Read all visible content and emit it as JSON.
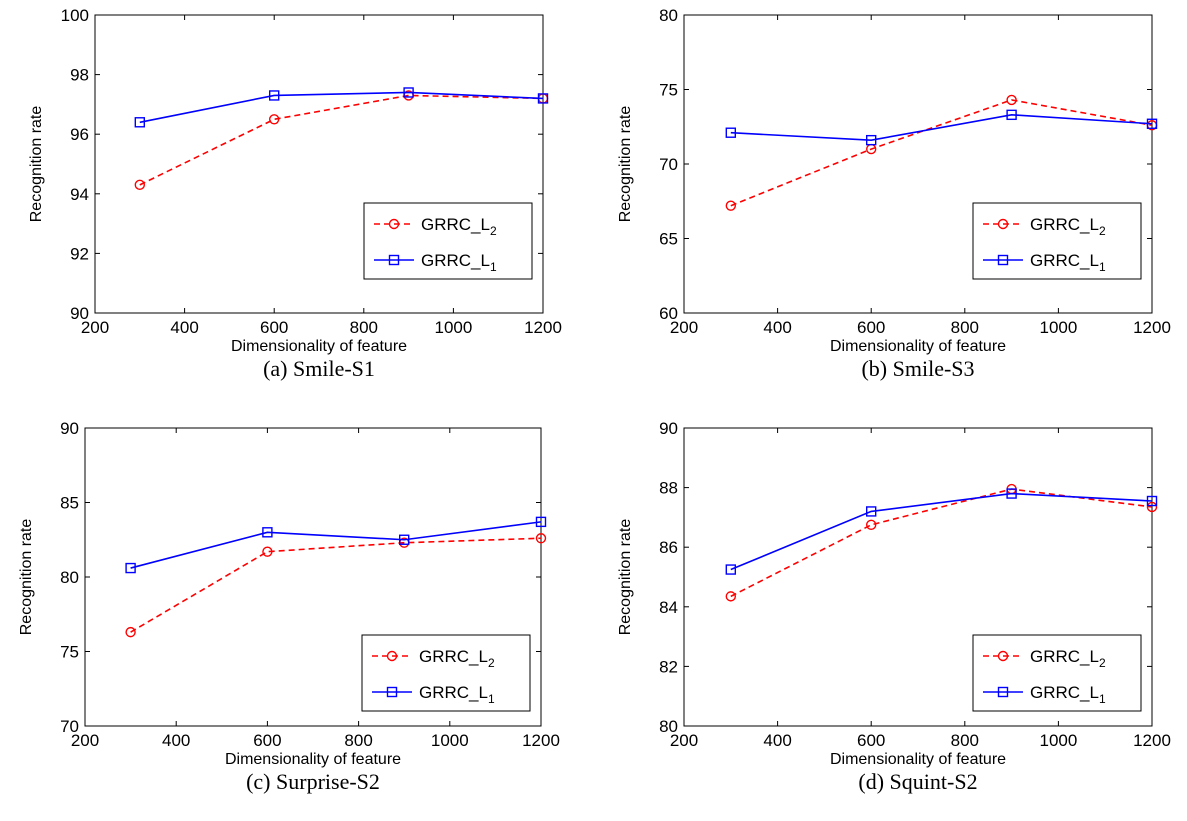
{
  "chart_data": [
    {
      "type": "line",
      "caption": "(a) Smile-S1",
      "xlabel": "Dimensionality of feature",
      "ylabel": "Recognition rate",
      "xlim": [
        200,
        1200
      ],
      "ylim": [
        90,
        100
      ],
      "xticks": [
        200,
        400,
        600,
        800,
        1000,
        1200
      ],
      "yticks": [
        90,
        92,
        94,
        96,
        98,
        100
      ],
      "legend_position": "center-right",
      "series": [
        {
          "legend_base": "GRRC_L",
          "legend_sub": "2",
          "color": "#ff0000",
          "dash": "dashed",
          "marker": "circle",
          "x": [
            300,
            600,
            900,
            1200
          ],
          "y": [
            94.3,
            96.5,
            97.3,
            97.2
          ]
        },
        {
          "legend_base": "GRRC_L",
          "legend_sub": "1",
          "color": "#0000ff",
          "dash": "solid",
          "marker": "square",
          "x": [
            300,
            600,
            900,
            1200
          ],
          "y": [
            96.4,
            97.3,
            97.4,
            97.2
          ]
        }
      ]
    },
    {
      "type": "line",
      "caption": "(b) Smile-S3",
      "xlabel": "Dimensionality of feature",
      "ylabel": "Recognition rate",
      "xlim": [
        200,
        1200
      ],
      "ylim": [
        60,
        80
      ],
      "xticks": [
        200,
        400,
        600,
        800,
        1000,
        1200
      ],
      "yticks": [
        60,
        65,
        70,
        75,
        80
      ],
      "legend_position": "center-right",
      "series": [
        {
          "legend_base": "GRRC_L",
          "legend_sub": "2",
          "color": "#ff0000",
          "dash": "dashed",
          "marker": "circle",
          "x": [
            300,
            600,
            900,
            1200
          ],
          "y": [
            67.2,
            71.0,
            74.3,
            72.6
          ]
        },
        {
          "legend_base": "GRRC_L",
          "legend_sub": "1",
          "color": "#0000ff",
          "dash": "solid",
          "marker": "square",
          "x": [
            300,
            600,
            900,
            1200
          ],
          "y": [
            72.1,
            71.6,
            73.3,
            72.7
          ]
        }
      ]
    },
    {
      "type": "line",
      "caption": "(c) Surprise-S2",
      "xlabel": "Dimensionality of feature",
      "ylabel": "Recognition rate",
      "xlim": [
        200,
        1200
      ],
      "ylim": [
        70,
        90
      ],
      "xticks": [
        200,
        400,
        600,
        800,
        1000,
        1200
      ],
      "yticks": [
        70,
        75,
        80,
        85,
        90
      ],
      "legend_position": "lower-right",
      "series": [
        {
          "legend_base": "GRRC_L",
          "legend_sub": "2",
          "color": "#ff0000",
          "dash": "dashed",
          "marker": "circle",
          "x": [
            300,
            600,
            900,
            1200
          ],
          "y": [
            76.3,
            81.7,
            82.3,
            82.6
          ]
        },
        {
          "legend_base": "GRRC_L",
          "legend_sub": "1",
          "color": "#0000ff",
          "dash": "solid",
          "marker": "square",
          "x": [
            300,
            600,
            900,
            1200
          ],
          "y": [
            80.6,
            83.0,
            82.5,
            83.7
          ]
        }
      ]
    },
    {
      "type": "line",
      "caption": "(d) Squint-S2",
      "xlabel": "Dimensionality of feature",
      "ylabel": "Recognition rate",
      "xlim": [
        200,
        1200
      ],
      "ylim": [
        80,
        90
      ],
      "xticks": [
        200,
        400,
        600,
        800,
        1000,
        1200
      ],
      "yticks": [
        80,
        82,
        84,
        86,
        88,
        90
      ],
      "legend_position": "lower-right",
      "series": [
        {
          "legend_base": "GRRC_L",
          "legend_sub": "2",
          "color": "#ff0000",
          "dash": "dashed",
          "marker": "circle",
          "x": [
            300,
            600,
            900,
            1200
          ],
          "y": [
            84.35,
            86.75,
            87.95,
            87.35
          ]
        },
        {
          "legend_base": "GRRC_L",
          "legend_sub": "1",
          "color": "#0000ff",
          "dash": "solid",
          "marker": "square",
          "x": [
            300,
            600,
            900,
            1200
          ],
          "y": [
            85.25,
            87.2,
            87.8,
            87.55
          ]
        }
      ]
    }
  ]
}
